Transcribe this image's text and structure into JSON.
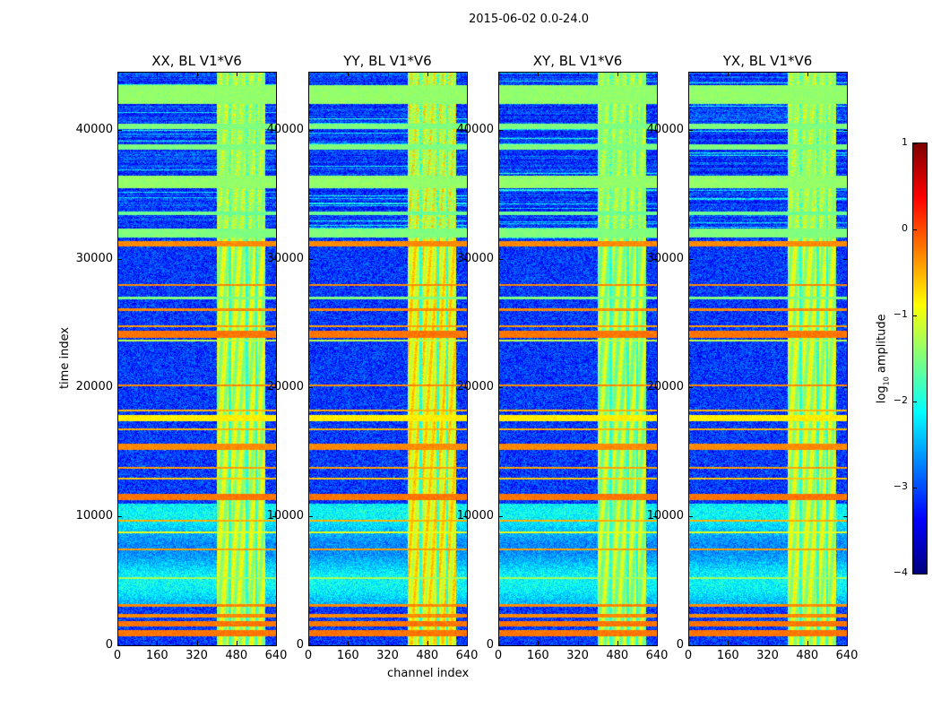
{
  "chart_data": {
    "type": "heatmap",
    "title": "2015-06-02 0.0-24.0",
    "xlabel": "channel index",
    "ylabel": "time index",
    "xlim": [
      0,
      640
    ],
    "ylim": [
      0,
      44500
    ],
    "xticks": [
      "0",
      "160",
      "320",
      "480",
      "640"
    ],
    "yticks": [
      "0",
      "10000",
      "20000",
      "30000",
      "40000"
    ],
    "panels": [
      {
        "title": "XX, BL V1*V6",
        "vband_level": -1.2,
        "seed": 11
      },
      {
        "title": "YY, BL V1*V6",
        "vband_level": -0.9,
        "seed": 23
      },
      {
        "title": "XY, BL V1*V6",
        "vband_level": -1.3,
        "seed": 37
      },
      {
        "title": "YX, BL V1*V6",
        "vband_level": -1.2,
        "seed": 51
      }
    ],
    "colorbar": {
      "label": "log",
      "label_sub": "10",
      "label_rest": " amplitude",
      "range": [
        -4,
        1
      ],
      "ticks": [
        "1",
        "0",
        "−1",
        "−2",
        "−3",
        "−4"
      ],
      "colormap": "jet"
    },
    "background_level": -3.1,
    "vertical_band_channels": [
      400,
      595
    ],
    "vertical_gaps_channels": [
      [
        448,
        458
      ],
      [
        515,
        525
      ],
      [
        555,
        563
      ]
    ],
    "upper_region": {
      "time_range": [
        31500,
        44500
      ],
      "level": -3.0
    },
    "horizontal_bands": [
      {
        "t": [
          42000,
          43500
        ],
        "level": -1.4
      },
      {
        "t": [
          40100,
          40500
        ],
        "level": -1.5
      },
      {
        "t": [
          38500,
          38900
        ],
        "level": -1.5
      },
      {
        "t": [
          35500,
          36500
        ],
        "level": -1.4
      },
      {
        "t": [
          33400,
          33700
        ],
        "level": -1.6
      },
      {
        "t": [
          31700,
          32400
        ],
        "level": -1.5
      },
      {
        "t": [
          31000,
          31400
        ],
        "level": -0.3
      },
      {
        "t": [
          27900,
          28050
        ],
        "level": -0.3
      },
      {
        "t": [
          26900,
          27050
        ],
        "level": -1.5
      },
      {
        "t": [
          26000,
          26150
        ],
        "level": -0.3
      },
      {
        "t": [
          24700,
          24850
        ],
        "level": -0.4
      },
      {
        "t": [
          23900,
          24450
        ],
        "level": -0.2
      },
      {
        "t": [
          23600,
          23750
        ],
        "level": -1.2
      },
      {
        "t": [
          20100,
          20250
        ],
        "level": -0.3
      },
      {
        "t": [
          18200,
          18300
        ],
        "level": -0.5
      },
      {
        "t": [
          17400,
          17900
        ],
        "level": -0.8
      },
      {
        "t": [
          16700,
          16850
        ],
        "level": -0.5
      },
      {
        "t": [
          15200,
          15700
        ],
        "level": -0.3
      },
      {
        "t": [
          13700,
          13900
        ],
        "level": -0.4
      },
      {
        "t": [
          12900,
          13050
        ],
        "level": -0.6
      },
      {
        "t": [
          11300,
          11800
        ],
        "level": -0.2
      },
      {
        "t": [
          9600,
          9750
        ],
        "level": -0.5
      },
      {
        "t": [
          8700,
          8850
        ],
        "level": -1.0
      },
      {
        "t": [
          7400,
          7550
        ],
        "level": -0.4
      },
      {
        "t": [
          5200,
          5300
        ],
        "level": -1.3
      },
      {
        "t": [
          3000,
          3200
        ],
        "level": -0.3
      },
      {
        "t": [
          2200,
          2500
        ],
        "level": -0.3
      },
      {
        "t": [
          1500,
          1900
        ],
        "level": -0.2
      },
      {
        "t": [
          700,
          1200
        ],
        "level": -0.2
      }
    ],
    "noisy_region": {
      "t": [
        3000,
        11000
      ],
      "level": -2.4
    }
  }
}
